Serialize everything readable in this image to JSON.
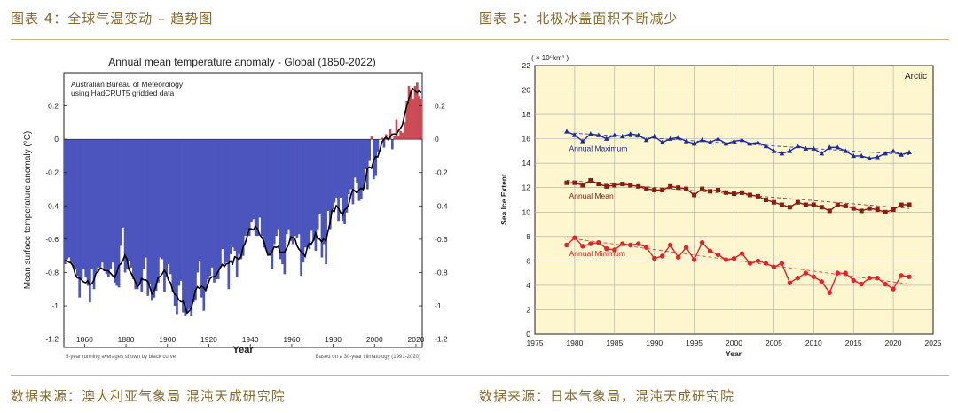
{
  "left": {
    "caption": "图表 4：全球气温变动 – 趋势图",
    "source": "数据来源：澳大利亚气象局 混沌天成研究院",
    "chart_data": {
      "type": "bar",
      "title": "Annual mean temperature anomaly - Global (1850-2022)",
      "note": "Australian Bureau of Meteorology\nusing HadCRUT5 gridded data",
      "ylabel": "Mean surface temperature anomaly (°C)",
      "xlabel": "Year",
      "footer_left": "5-year running averages shown by black curve",
      "footer_right": "Based on a 30-year climatology (1991-2020)",
      "xlim": [
        1850,
        2023
      ],
      "ylim": [
        -1.25,
        0.4
      ],
      "xticks": [
        1860,
        1880,
        1900,
        1920,
        1940,
        1960,
        1980,
        2000,
        2020
      ],
      "yticks": [
        0.2,
        0,
        -0.2,
        -0.4,
        -0.6,
        -0.8,
        -1,
        -1.2
      ],
      "x": [
        1850,
        1851,
        1852,
        1853,
        1854,
        1855,
        1856,
        1857,
        1858,
        1859,
        1860,
        1861,
        1862,
        1863,
        1864,
        1865,
        1866,
        1867,
        1868,
        1869,
        1870,
        1871,
        1872,
        1873,
        1874,
        1875,
        1876,
        1877,
        1878,
        1879,
        1880,
        1881,
        1882,
        1883,
        1884,
        1885,
        1886,
        1887,
        1888,
        1889,
        1890,
        1891,
        1892,
        1893,
        1894,
        1895,
        1896,
        1897,
        1898,
        1899,
        1900,
        1901,
        1902,
        1903,
        1904,
        1905,
        1906,
        1907,
        1908,
        1909,
        1910,
        1911,
        1912,
        1913,
        1914,
        1915,
        1916,
        1917,
        1918,
        1919,
        1920,
        1921,
        1922,
        1923,
        1924,
        1925,
        1926,
        1927,
        1928,
        1929,
        1930,
        1931,
        1932,
        1933,
        1934,
        1935,
        1936,
        1937,
        1938,
        1939,
        1940,
        1941,
        1942,
        1943,
        1944,
        1945,
        1946,
        1947,
        1948,
        1949,
        1950,
        1951,
        1952,
        1953,
        1954,
        1955,
        1956,
        1957,
        1958,
        1959,
        1960,
        1961,
        1962,
        1963,
        1964,
        1965,
        1966,
        1967,
        1968,
        1969,
        1970,
        1971,
        1972,
        1973,
        1974,
        1975,
        1976,
        1977,
        1978,
        1979,
        1980,
        1981,
        1982,
        1983,
        1984,
        1985,
        1986,
        1987,
        1988,
        1989,
        1990,
        1991,
        1992,
        1993,
        1994,
        1995,
        1996,
        1997,
        1998,
        1999,
        2000,
        2001,
        2002,
        2003,
        2004,
        2005,
        2006,
        2007,
        2008,
        2009,
        2010,
        2011,
        2012,
        2013,
        2014,
        2015,
        2016,
        2017,
        2018,
        2019,
        2020,
        2021,
        2022
      ],
      "values": [
        -0.75,
        -0.72,
        -0.71,
        -0.74,
        -0.77,
        -0.78,
        -0.82,
        -0.95,
        -0.84,
        -0.78,
        -0.83,
        -0.88,
        -0.98,
        -0.78,
        -0.9,
        -0.8,
        -0.77,
        -0.77,
        -0.74,
        -0.79,
        -0.81,
        -0.83,
        -0.78,
        -0.74,
        -0.86,
        -0.88,
        -0.89,
        -0.64,
        -0.53,
        -0.8,
        -0.78,
        -0.73,
        -0.77,
        -0.84,
        -0.9,
        -0.9,
        -0.87,
        -0.92,
        -0.78,
        -0.71,
        -0.94,
        -0.87,
        -0.97,
        -0.95,
        -0.91,
        -0.86,
        -0.71,
        -0.72,
        -0.92,
        -0.83,
        -0.75,
        -0.81,
        -0.92,
        -1.0,
        -1.05,
        -0.88,
        -0.85,
        -1.04,
        -1.06,
        -1.04,
        -1.02,
        -1.06,
        -0.98,
        -0.97,
        -0.8,
        -0.73,
        -0.95,
        -1.03,
        -0.9,
        -0.84,
        -0.82,
        -0.77,
        -0.86,
        -0.84,
        -0.84,
        -0.77,
        -0.66,
        -0.75,
        -0.74,
        -0.9,
        -0.69,
        -0.65,
        -0.67,
        -0.83,
        -0.69,
        -0.72,
        -0.7,
        -0.58,
        -0.55,
        -0.58,
        -0.5,
        -0.48,
        -0.58,
        -0.58,
        -0.47,
        -0.58,
        -0.65,
        -0.66,
        -0.69,
        -0.7,
        -0.78,
        -0.63,
        -0.58,
        -0.54,
        -0.72,
        -0.75,
        -0.81,
        -0.57,
        -0.54,
        -0.61,
        -0.63,
        -0.58,
        -0.59,
        -0.57,
        -0.82,
        -0.74,
        -0.65,
        -0.65,
        -0.66,
        -0.55,
        -0.61,
        -0.67,
        -0.54,
        -0.45,
        -0.71,
        -0.63,
        -0.75,
        -0.43,
        -0.54,
        -0.42,
        -0.38,
        -0.35,
        -0.49,
        -0.35,
        -0.49,
        -0.51,
        -0.44,
        -0.33,
        -0.3,
        -0.39,
        -0.23,
        -0.26,
        -0.37,
        -0.36,
        -0.3,
        -0.18,
        -0.3,
        -0.13,
        0.02,
        -0.24,
        -0.22,
        -0.08,
        0.0,
        0.01,
        -0.05,
        0.03,
        0.01,
        0.06,
        -0.06,
        0.02,
        0.12,
        0.02,
        0.05,
        0.04,
        0.1,
        0.23,
        0.32,
        0.3,
        0.24,
        0.32,
        0.34,
        0.26,
        0.24
      ]
    }
  },
  "right": {
    "caption": "图表 5：北极冰盖面积不断减少",
    "source": "数据来源：日本气象局，混沌天成研究院",
    "chart_data": {
      "type": "line",
      "title": "Arctic",
      "unit": "( × 10⁶km² )",
      "ylabel": "Sea Ice Extent",
      "xlabel": "Year",
      "xlim": [
        1975,
        2025
      ],
      "ylim": [
        0,
        22
      ],
      "xticks": [
        1975,
        1980,
        1985,
        1990,
        1995,
        2000,
        2005,
        2010,
        2015,
        2020,
        2025
      ],
      "yticks": [
        0,
        2,
        4,
        6,
        8,
        10,
        12,
        14,
        16,
        18,
        20,
        22
      ],
      "x": [
        1979,
        1980,
        1981,
        1982,
        1983,
        1984,
        1985,
        1986,
        1987,
        1988,
        1989,
        1990,
        1991,
        1992,
        1993,
        1994,
        1995,
        1996,
        1997,
        1998,
        1999,
        2000,
        2001,
        2002,
        2003,
        2004,
        2005,
        2006,
        2007,
        2008,
        2009,
        2010,
        2011,
        2012,
        2013,
        2014,
        2015,
        2016,
        2017,
        2018,
        2019,
        2020,
        2021,
        2022
      ],
      "series": [
        {
          "name": "Annual Maximum",
          "color": "#1c2a9c",
          "marker": "triangle",
          "values": [
            16.6,
            16.3,
            15.8,
            16.4,
            16.3,
            16.0,
            16.3,
            16.2,
            16.4,
            16.3,
            15.9,
            16.2,
            15.7,
            16.0,
            16.1,
            15.8,
            15.6,
            15.9,
            15.7,
            16.0,
            15.6,
            15.8,
            15.9,
            15.6,
            15.7,
            15.4,
            15.0,
            14.8,
            15.0,
            15.4,
            15.2,
            15.2,
            14.8,
            15.3,
            15.3,
            15.0,
            14.6,
            14.6,
            14.4,
            14.5,
            14.8,
            15.0,
            14.7,
            14.9
          ],
          "trend": [
            16.5,
            14.7
          ]
        },
        {
          "name": "Annual Mean",
          "color": "#8b1a10",
          "marker": "square",
          "values": [
            12.4,
            12.4,
            12.2,
            12.6,
            12.3,
            12.1,
            12.2,
            12.3,
            12.2,
            12.1,
            11.9,
            11.8,
            11.8,
            12.1,
            12.0,
            11.9,
            11.4,
            11.9,
            11.7,
            11.8,
            11.6,
            11.5,
            11.6,
            11.4,
            11.3,
            11.0,
            10.8,
            10.6,
            10.4,
            10.8,
            10.6,
            10.6,
            10.4,
            10.1,
            10.6,
            10.5,
            10.3,
            10.1,
            10.3,
            10.2,
            10.0,
            10.2,
            10.6,
            10.6
          ],
          "trend": [
            12.6,
            10.3
          ]
        },
        {
          "name": "Annual Minimum",
          "color": "#e8202a",
          "marker": "circle",
          "values": [
            7.3,
            7.9,
            7.2,
            7.4,
            7.5,
            7.0,
            6.9,
            7.4,
            7.3,
            7.4,
            7.1,
            6.2,
            6.4,
            7.3,
            6.3,
            7.1,
            6.1,
            7.5,
            6.8,
            6.5,
            6.1,
            6.2,
            6.6,
            5.8,
            6.0,
            5.8,
            5.5,
            5.8,
            4.2,
            4.6,
            5.0,
            4.7,
            4.3,
            3.4,
            5.0,
            5.0,
            4.4,
            4.1,
            4.6,
            4.6,
            4.1,
            3.7,
            4.8,
            4.7
          ],
          "trend": [
            7.9,
            4.1
          ]
        }
      ]
    }
  }
}
